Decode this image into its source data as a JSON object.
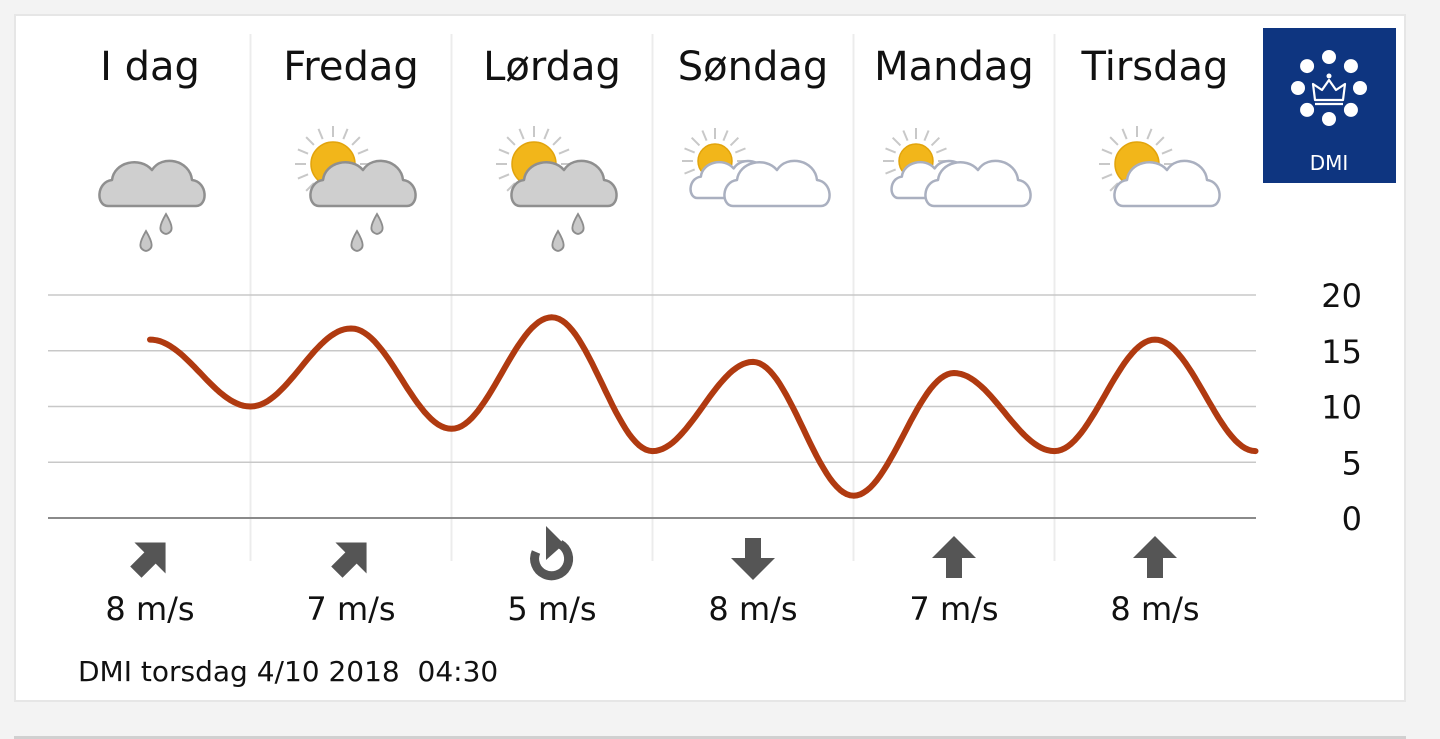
{
  "brand": {
    "name": "DMI",
    "color": "#0e3580"
  },
  "footer": {
    "text": "DMI torsdag 4/10 2018  04:30"
  },
  "colors": {
    "line": "#b03a10",
    "grid": "#c8c8c8",
    "arrow": "#555555"
  },
  "days": [
    {
      "name": "I dag",
      "icon": "cloud-rain-icon",
      "wind_speed": "8 m/s",
      "wind_icon": "arrow-northeast-icon"
    },
    {
      "name": "Fredag",
      "icon": "sun-cloud-rain-icon",
      "wind_speed": "7 m/s",
      "wind_icon": "arrow-northeast-icon"
    },
    {
      "name": "Lørdag",
      "icon": "sun-cloud-rain-icon",
      "wind_speed": "5 m/s",
      "wind_icon": "rotate-clockwise-icon"
    },
    {
      "name": "Søndag",
      "icon": "sun-clouds-icon",
      "wind_speed": "8 m/s",
      "wind_icon": "arrow-down-icon"
    },
    {
      "name": "Mandag",
      "icon": "sun-clouds-icon",
      "wind_speed": "7 m/s",
      "wind_icon": "arrow-up-icon"
    },
    {
      "name": "Tirsdag",
      "icon": "sun-cloud-icon",
      "wind_speed": "8 m/s",
      "wind_icon": "arrow-up-icon"
    }
  ],
  "chart_data": {
    "type": "line",
    "title": "",
    "xlabel": "",
    "ylabel": "",
    "ylim": [
      0,
      20
    ],
    "yticks": [
      "0",
      "5",
      "10",
      "15",
      "20"
    ],
    "grid": true,
    "categories": [
      "I dag",
      "Fredag",
      "Lørdag",
      "Søndag",
      "Mandag",
      "Tirsdag"
    ],
    "series": [
      {
        "name": "",
        "x": [
          0,
          0.5,
          1,
          1.5,
          2,
          2.5,
          3,
          3.5,
          4,
          4.5,
          5,
          5.5
        ],
        "values": [
          16,
          10,
          17,
          8,
          18,
          6,
          14,
          2,
          13,
          6,
          16,
          6
        ]
      }
    ]
  }
}
